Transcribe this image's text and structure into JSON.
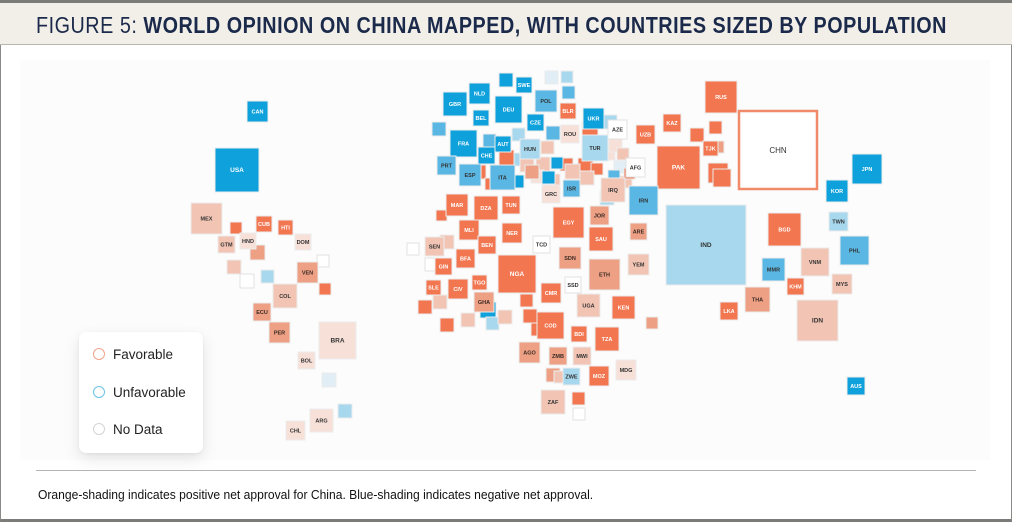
{
  "figure": {
    "title_prefix": "FIGURE 5:",
    "title_main": "WORLD OPINION ON CHINA MAPPED, WITH COUNTRIES SIZED BY POPULATION",
    "footnote": "Orange-shading indicates positive net approval for China. Blue-shading indicates negative net approval."
  },
  "legend": {
    "items": [
      {
        "label": "Favorable",
        "color": "#f0a38a"
      },
      {
        "label": "Unfavorable",
        "color": "#6cc3e8"
      },
      {
        "label": "No Data",
        "color": "#d4d4d4"
      }
    ]
  },
  "colors": {
    "fav_strong": "#f27650",
    "fav_medium": "#eda084",
    "fav_light": "#f2c4b4",
    "fav_pale": "#f7e0d8",
    "unf_strong": "#0ea1dc",
    "unf_medium": "#5ab7e3",
    "unf_light": "#a8d8ee",
    "unf_pale": "#e1eef6",
    "no_data": "#ffffff",
    "china_border": "#f08a68"
  },
  "chart_data": {
    "type": "heatmap",
    "subtype": "tile-cartogram",
    "title": "World Opinion on China Mapped, with Countries Sized by Population",
    "encoding": "tile area ~ population; color = net approval of China (orange positive, blue negative)",
    "sentiment_scale": [
      "fav_strong",
      "fav_medium",
      "fav_light",
      "fav_pale",
      "unf_pale",
      "unf_light",
      "unf_medium",
      "unf_strong",
      "no_data"
    ],
    "countries": [
      {
        "code": "CAN",
        "sentiment": "unf_strong"
      },
      {
        "code": "USA",
        "sentiment": "unf_strong"
      },
      {
        "code": "MEX",
        "sentiment": "fav_light"
      },
      {
        "code": "CUB",
        "sentiment": "fav_strong"
      },
      {
        "code": "HTI",
        "sentiment": "fav_strong"
      },
      {
        "code": "GTM",
        "sentiment": "fav_light"
      },
      {
        "code": "HND",
        "sentiment": "fav_pale"
      },
      {
        "code": "DOM",
        "sentiment": "fav_pale"
      },
      {
        "code": "VEN",
        "sentiment": "fav_medium"
      },
      {
        "code": "COL",
        "sentiment": "fav_light"
      },
      {
        "code": "ECU",
        "sentiment": "fav_medium"
      },
      {
        "code": "PER",
        "sentiment": "fav_medium"
      },
      {
        "code": "BRA",
        "sentiment": "fav_pale"
      },
      {
        "code": "BOL",
        "sentiment": "fav_pale"
      },
      {
        "code": "ARG",
        "sentiment": "fav_pale"
      },
      {
        "code": "CHL",
        "sentiment": "fav_pale"
      },
      {
        "code": "GBR",
        "sentiment": "unf_strong"
      },
      {
        "code": "NLD",
        "sentiment": "unf_strong"
      },
      {
        "code": "SWE",
        "sentiment": "unf_strong"
      },
      {
        "code": "DEU",
        "sentiment": "unf_strong"
      },
      {
        "code": "POL",
        "sentiment": "unf_medium"
      },
      {
        "code": "BLR",
        "sentiment": "fav_strong"
      },
      {
        "code": "BEL",
        "sentiment": "unf_strong"
      },
      {
        "code": "CZE",
        "sentiment": "unf_strong"
      },
      {
        "code": "UKR",
        "sentiment": "unf_strong"
      },
      {
        "code": "ROU",
        "sentiment": "fav_pale"
      },
      {
        "code": "AZE",
        "sentiment": "no_data"
      },
      {
        "code": "FRA",
        "sentiment": "unf_strong"
      },
      {
        "code": "AUT",
        "sentiment": "unf_strong"
      },
      {
        "code": "HUN",
        "sentiment": "unf_light"
      },
      {
        "code": "CHE",
        "sentiment": "unf_strong"
      },
      {
        "code": "TUR",
        "sentiment": "unf_light"
      },
      {
        "code": "PRT",
        "sentiment": "unf_medium"
      },
      {
        "code": "ESP",
        "sentiment": "unf_medium"
      },
      {
        "code": "ITA",
        "sentiment": "unf_medium"
      },
      {
        "code": "GRC",
        "sentiment": "fav_pale"
      },
      {
        "code": "ISR",
        "sentiment": "unf_medium"
      },
      {
        "code": "IRQ",
        "sentiment": "fav_light"
      },
      {
        "code": "AFG",
        "sentiment": "no_data"
      },
      {
        "code": "RUS",
        "sentiment": "fav_strong"
      },
      {
        "code": "KAZ",
        "sentiment": "fav_strong"
      },
      {
        "code": "UZB",
        "sentiment": "fav_strong"
      },
      {
        "code": "TJK",
        "sentiment": "fav_strong"
      },
      {
        "code": "PAK",
        "sentiment": "fav_strong"
      },
      {
        "code": "CHN",
        "sentiment": "no_data"
      },
      {
        "code": "IRN",
        "sentiment": "unf_medium"
      },
      {
        "code": "MAR",
        "sentiment": "fav_strong"
      },
      {
        "code": "DZA",
        "sentiment": "fav_strong"
      },
      {
        "code": "TUN",
        "sentiment": "fav_strong"
      },
      {
        "code": "EGY",
        "sentiment": "fav_strong"
      },
      {
        "code": "JOR",
        "sentiment": "fav_medium"
      },
      {
        "code": "SAU",
        "sentiment": "fav_strong"
      },
      {
        "code": "ARE",
        "sentiment": "fav_medium"
      },
      {
        "code": "MLI",
        "sentiment": "fav_strong"
      },
      {
        "code": "NER",
        "sentiment": "fav_strong"
      },
      {
        "code": "TCD",
        "sentiment": "no_data"
      },
      {
        "code": "SEN",
        "sentiment": "fav_light"
      },
      {
        "code": "BEN",
        "sentiment": "fav_strong"
      },
      {
        "code": "SDN",
        "sentiment": "fav_medium"
      },
      {
        "code": "YEM",
        "sentiment": "fav_light"
      },
      {
        "code": "GIN",
        "sentiment": "fav_strong"
      },
      {
        "code": "BFA",
        "sentiment": "fav_strong"
      },
      {
        "code": "NGA",
        "sentiment": "fav_strong"
      },
      {
        "code": "ETH",
        "sentiment": "fav_medium"
      },
      {
        "code": "SLE",
        "sentiment": "fav_strong"
      },
      {
        "code": "CIV",
        "sentiment": "fav_strong"
      },
      {
        "code": "TGO",
        "sentiment": "fav_strong"
      },
      {
        "code": "SSD",
        "sentiment": "no_data"
      },
      {
        "code": "CMR",
        "sentiment": "fav_strong"
      },
      {
        "code": "GHA",
        "sentiment": "fav_medium"
      },
      {
        "code": "UGA",
        "sentiment": "fav_light"
      },
      {
        "code": "KEN",
        "sentiment": "fav_strong"
      },
      {
        "code": "COD",
        "sentiment": "fav_strong"
      },
      {
        "code": "BDI",
        "sentiment": "fav_strong"
      },
      {
        "code": "TZA",
        "sentiment": "fav_strong"
      },
      {
        "code": "AGO",
        "sentiment": "fav_medium"
      },
      {
        "code": "ZMB",
        "sentiment": "fav_medium"
      },
      {
        "code": "MWI",
        "sentiment": "fav_light"
      },
      {
        "code": "ZWE",
        "sentiment": "unf_light"
      },
      {
        "code": "MOZ",
        "sentiment": "fav_strong"
      },
      {
        "code": "MDG",
        "sentiment": "fav_pale"
      },
      {
        "code": "ZAF",
        "sentiment": "fav_light"
      },
      {
        "code": "IND",
        "sentiment": "unf_light"
      },
      {
        "code": "BGD",
        "sentiment": "fav_strong"
      },
      {
        "code": "JPN",
        "sentiment": "unf_strong"
      },
      {
        "code": "KOR",
        "sentiment": "unf_strong"
      },
      {
        "code": "TWN",
        "sentiment": "unf_light"
      },
      {
        "code": "PHL",
        "sentiment": "unf_medium"
      },
      {
        "code": "MMR",
        "sentiment": "unf_medium"
      },
      {
        "code": "VNM",
        "sentiment": "fav_light"
      },
      {
        "code": "KHM",
        "sentiment": "fav_strong"
      },
      {
        "code": "MYS",
        "sentiment": "fav_light"
      },
      {
        "code": "THA",
        "sentiment": "fav_medium"
      },
      {
        "code": "LKA",
        "sentiment": "fav_strong"
      },
      {
        "code": "IDN",
        "sentiment": "fav_light"
      },
      {
        "code": "AUS",
        "sentiment": "unf_strong"
      }
    ],
    "unlabeled_tiles": [
      "fav_strong",
      "fav_light",
      "fav_medium",
      "unf_light",
      "no_data",
      "no_data",
      "fav_strong",
      "unf_pale",
      "unf_light",
      "unf_strong",
      "unf_pale",
      "unf_light",
      "unf_medium",
      "unf_medium",
      "unf_medium",
      "unf_light",
      "unf_light",
      "unf_medium",
      "fav_strong",
      "fav_light",
      "fav_light",
      "fav_strong",
      "fav_strong",
      "unf_strong",
      "fav_light",
      "fav_pale",
      "fav_light",
      "fav_light",
      "unf_strong",
      "fav_strong",
      "fav_light",
      "unf_light",
      "fav_pale",
      "fav_pale",
      "fav_light",
      "unf_pale",
      "unf_medium",
      "fav_light",
      "fav_strong",
      "unf_light",
      "fav_strong",
      "fav_strong",
      "fav_strong",
      "fav_medium",
      "fav_strong",
      "fav_strong",
      "fav_light",
      "fav_strong",
      "fav_strong",
      "fav_strong",
      "fav_medium",
      "unf_strong",
      "no_data",
      "no_data",
      "fav_strong",
      "fav_light",
      "fav_strong",
      "fav_light",
      "unf_strong",
      "unf_light",
      "fav_light",
      "fav_strong",
      "fav_strong",
      "fav_strong",
      "fav_medium",
      "fav_light",
      "fav_strong",
      "no_data",
      "fav_medium"
    ]
  }
}
